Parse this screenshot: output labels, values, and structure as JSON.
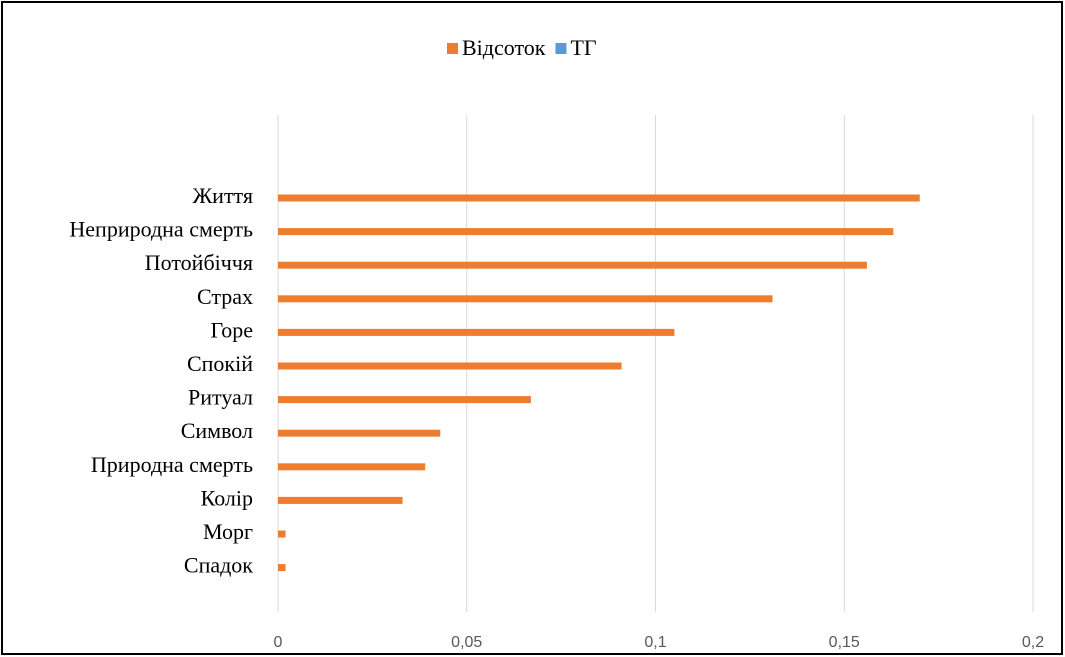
{
  "chart_data": {
    "type": "hbar",
    "categories": [
      "Життя",
      "Неприродна смерть",
      "Потойбіччя",
      "Страх",
      "Горе",
      "Спокій",
      "Ритуал",
      "Символ",
      "Природна смерть",
      "Колір",
      "Морг",
      "Спадок"
    ],
    "series": [
      {
        "name": "Відсоток",
        "color": "#ED7D31",
        "values": [
          0.17,
          0.163,
          0.156,
          0.131,
          0.105,
          0.091,
          0.067,
          0.043,
          0.039,
          0.033,
          0.002,
          0.002
        ]
      },
      {
        "name": "ТГ",
        "color": "#5B9BD5",
        "values": [
          null,
          null,
          null,
          null,
          null,
          null,
          null,
          null,
          null,
          null,
          null,
          null
        ]
      }
    ],
    "xlim": [
      0,
      0.2
    ],
    "xticks": [
      0,
      {
        "value": 0.05,
        "label": "0,05"
      },
      {
        "value": 0.1,
        "label": "0,1"
      },
      {
        "value": 0.15,
        "label": "0,15"
      },
      {
        "value": 0.2,
        "label": "0,2"
      }
    ],
    "grid": true,
    "legend": "top"
  }
}
